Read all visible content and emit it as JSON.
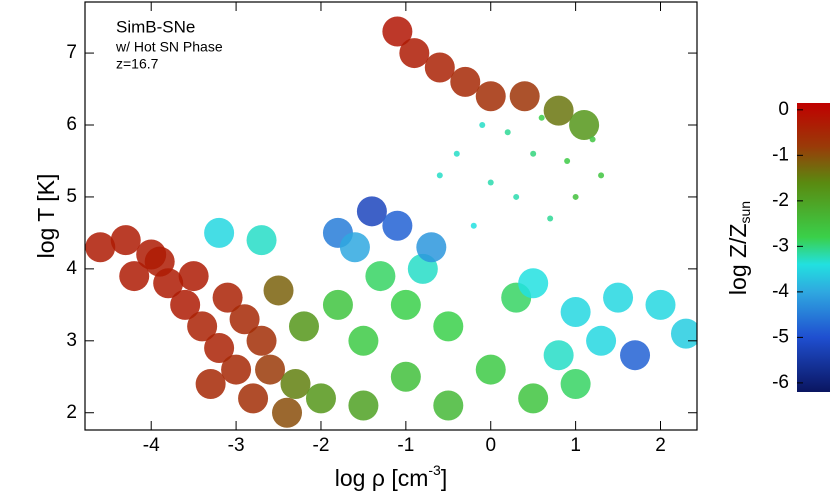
{
  "chart_data": {
    "type": "scatter",
    "annotations": [
      "SimB-SNe",
      "w/ Hot SN Phase",
      "z=16.7"
    ],
    "xlabel": {
      "text": "log ρ [cm",
      "sup": "-3",
      "tail": "]"
    },
    "ylabel": "log T [K]",
    "colorbar_label": {
      "text": "log Z/Z",
      "sub": "sun"
    },
    "xlim": [
      -4.78,
      2.43
    ],
    "ylim": [
      1.76,
      7.71
    ],
    "xticks": [
      -4,
      -3,
      -2,
      -1,
      0,
      1,
      2
    ],
    "yticks": [
      2,
      3,
      4,
      5,
      6,
      7
    ],
    "zlim": [
      -6.2,
      0.15
    ],
    "zticks": [
      0,
      -1,
      -2,
      -3,
      -4,
      -5,
      -6
    ],
    "colormap": [
      [
        -6.2,
        "#0a1560"
      ],
      [
        -5.0,
        "#1f4fd0"
      ],
      [
        -4.0,
        "#2fa8e0"
      ],
      [
        -3.4,
        "#22e0e0"
      ],
      [
        -2.8,
        "#3ad04a"
      ],
      [
        -1.6,
        "#5a8a10"
      ],
      [
        -0.8,
        "#9a3a08"
      ],
      [
        0.15,
        "#c00000"
      ]
    ],
    "series": [
      {
        "marker_size": 15,
        "x": [
          -4.6,
          -4.3,
          -4.0,
          -4.2,
          -3.8,
          -3.6,
          -3.4,
          -3.2,
          -3.0,
          -3.9,
          -3.5,
          -3.1,
          -2.9,
          -2.7,
          -2.6,
          -2.8,
          -2.4,
          -3.3,
          -2.3,
          -2.0,
          -1.5,
          -2.5,
          -2.2,
          -1.8,
          -1.5,
          -1.0,
          -0.5,
          0,
          -1,
          0.5,
          -0.5,
          1,
          0.3,
          -1.3,
          0.5,
          1,
          1.5,
          2,
          2.3,
          1.3,
          0.8,
          -0.8,
          -1.8,
          -1.4,
          -1.1,
          -0.7,
          -1.6,
          -3.2,
          -2.7,
          1.7,
          -1.1,
          -0.9,
          -0.6,
          -0.3,
          0,
          0.4,
          0.8,
          1.1
        ],
        "y": [
          4.3,
          4.4,
          4.2,
          3.9,
          3.8,
          3.5,
          3.2,
          2.9,
          2.6,
          4.1,
          3.9,
          3.6,
          3.3,
          3.0,
          2.6,
          2.2,
          2.0,
          2.4,
          2.4,
          2.2,
          2.1,
          3.7,
          3.2,
          3.5,
          3.0,
          3.5,
          3.2,
          2.6,
          2.5,
          2.2,
          2.1,
          2.4,
          3.6,
          3.9,
          3.8,
          3.4,
          3.6,
          3.5,
          3.1,
          3.0,
          2.8,
          4.0,
          4.5,
          4.8,
          4.6,
          4.3,
          4.3,
          4.5,
          4.4,
          2.8,
          7.3,
          7.0,
          6.8,
          6.6,
          6.4,
          6.4,
          6.2,
          6.0
        ],
        "z": [
          -0.3,
          -0.3,
          -0.3,
          -0.3,
          -0.3,
          -0.3,
          -0.4,
          -0.4,
          -0.5,
          -0.3,
          -0.3,
          -0.4,
          -0.5,
          -0.6,
          -0.8,
          -0.6,
          -1.0,
          -0.5,
          -1.5,
          -1.8,
          -2.0,
          -1.2,
          -1.8,
          -2.6,
          -2.7,
          -2.8,
          -2.8,
          -2.7,
          -2.5,
          -2.6,
          -2.4,
          -2.9,
          -2.9,
          -2.9,
          -3.4,
          -3.5,
          -3.5,
          -3.5,
          -3.6,
          -3.5,
          -3.3,
          -3.3,
          -4.5,
          -5.2,
          -4.8,
          -4.2,
          -4.0,
          -3.5,
          -3.3,
          -4.8,
          -0.2,
          -0.3,
          -0.4,
          -0.5,
          -0.6,
          -0.7,
          -1.4,
          -1.8
        ]
      },
      {
        "marker_size": 3,
        "x": [
          -0.4,
          0,
          0.5,
          1.0,
          0.7,
          -0.2,
          -0.6,
          0.2,
          0.9,
          1.3,
          0.3,
          -0.1,
          1.2,
          0.6
        ],
        "y": [
          5.6,
          5.2,
          5.6,
          5.0,
          4.7,
          4.6,
          5.3,
          5.9,
          5.5,
          5.3,
          5.0,
          6.0,
          5.8,
          6.1
        ],
        "z": [
          -3.3,
          -3.2,
          -3.0,
          -2.5,
          -3.1,
          -3.4,
          -3.3,
          -3.1,
          -2.7,
          -2.6,
          -3.2,
          -3.3,
          -2.6,
          -2.8
        ]
      }
    ]
  }
}
